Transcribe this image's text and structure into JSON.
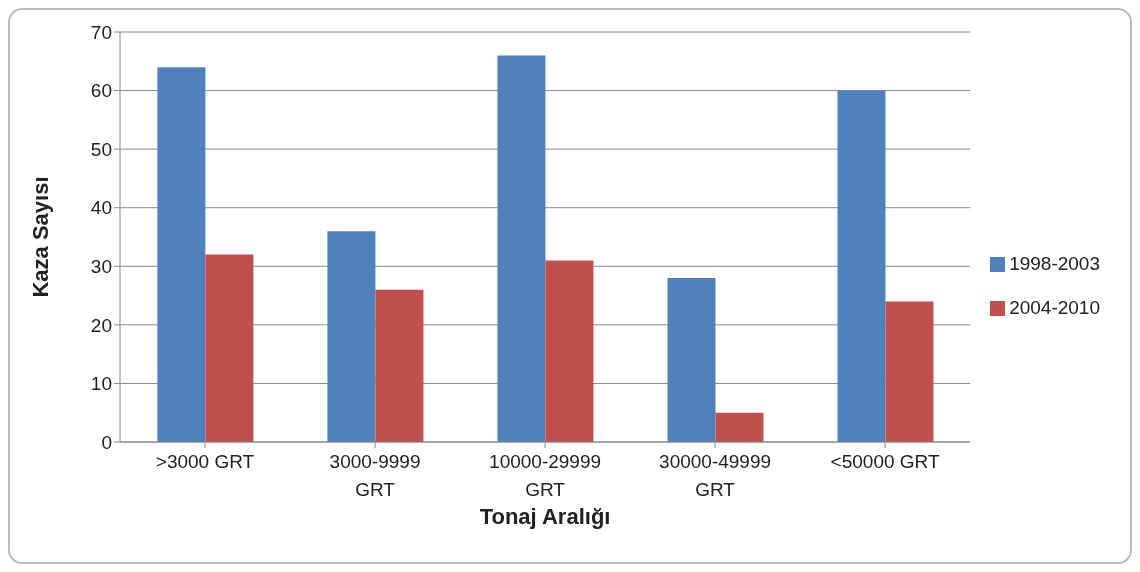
{
  "chart_data": {
    "type": "bar",
    "xlabel": "Tonaj Aralığı",
    "ylabel": "Kaza Sayısı",
    "categories": [
      ">3000 GRT",
      "3000-9999 GRT",
      "10000-29999 GRT",
      "30000-49999 GRT",
      "<50000 GRT"
    ],
    "series": [
      {
        "name": "1998-2003",
        "color": "#4f81bd",
        "values": [
          64,
          36,
          66,
          28,
          60
        ]
      },
      {
        "name": "2004-2010",
        "color": "#c0504d",
        "values": [
          32,
          26,
          31,
          5,
          24
        ]
      }
    ],
    "ylim": [
      0,
      70
    ],
    "yticks": [
      0,
      10,
      20,
      30,
      40,
      50,
      60,
      70
    ],
    "grid": "y",
    "legend": "right"
  }
}
